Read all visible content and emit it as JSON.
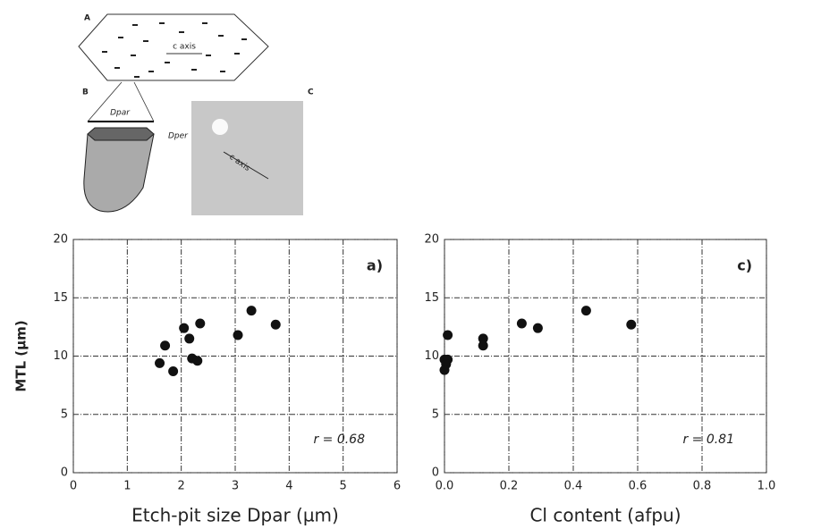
{
  "diagram": {
    "panel_a": "A",
    "panel_b": "B",
    "panel_c": "C",
    "c_axis": "c axis",
    "c_axis_photo": "c axis",
    "dpar": "Dpar",
    "dper": "Dper"
  },
  "chart_data": [
    {
      "type": "scatter",
      "annotation": "a)",
      "stat": "r = 0.68",
      "xlabel": "Etch-pit size Dpar (µm)",
      "ylabel": "MTL (µm)",
      "x": [
        1.6,
        1.7,
        1.85,
        2.05,
        2.15,
        2.2,
        2.3,
        2.35,
        3.05,
        3.3,
        3.75
      ],
      "values": [
        9.4,
        10.9,
        8.7,
        12.4,
        11.5,
        9.8,
        9.6,
        12.8,
        11.8,
        13.9,
        12.7
      ],
      "color": "#111111",
      "xlim": [
        0,
        6
      ],
      "xticks": [
        0,
        1,
        2,
        3,
        4,
        5,
        6
      ],
      "ylim": [
        0,
        20
      ],
      "yticks": [
        0,
        5,
        10,
        15,
        20
      ],
      "grid": true
    },
    {
      "type": "scatter",
      "annotation": "c)",
      "stat": "r = 0.81",
      "xlabel": "Cl content (afpu)",
      "x": [
        0.01,
        0.0,
        0.01,
        0.005,
        0.0,
        0.12,
        0.12,
        0.24,
        0.29,
        0.44,
        0.58
      ],
      "values": [
        11.8,
        9.7,
        9.7,
        9.3,
        8.8,
        11.5,
        10.9,
        12.8,
        12.4,
        13.9,
        12.7
      ],
      "color": "#111111",
      "xlim": [
        0,
        1
      ],
      "xticks": [
        {
          "value": 0,
          "label": "0.0"
        },
        0.2,
        0.4,
        0.6,
        0.8,
        {
          "value": 1,
          "label": "1.0"
        }
      ],
      "ylim": [
        0,
        20
      ],
      "yticks": [
        0,
        5,
        10,
        15,
        20
      ],
      "grid": true
    }
  ]
}
